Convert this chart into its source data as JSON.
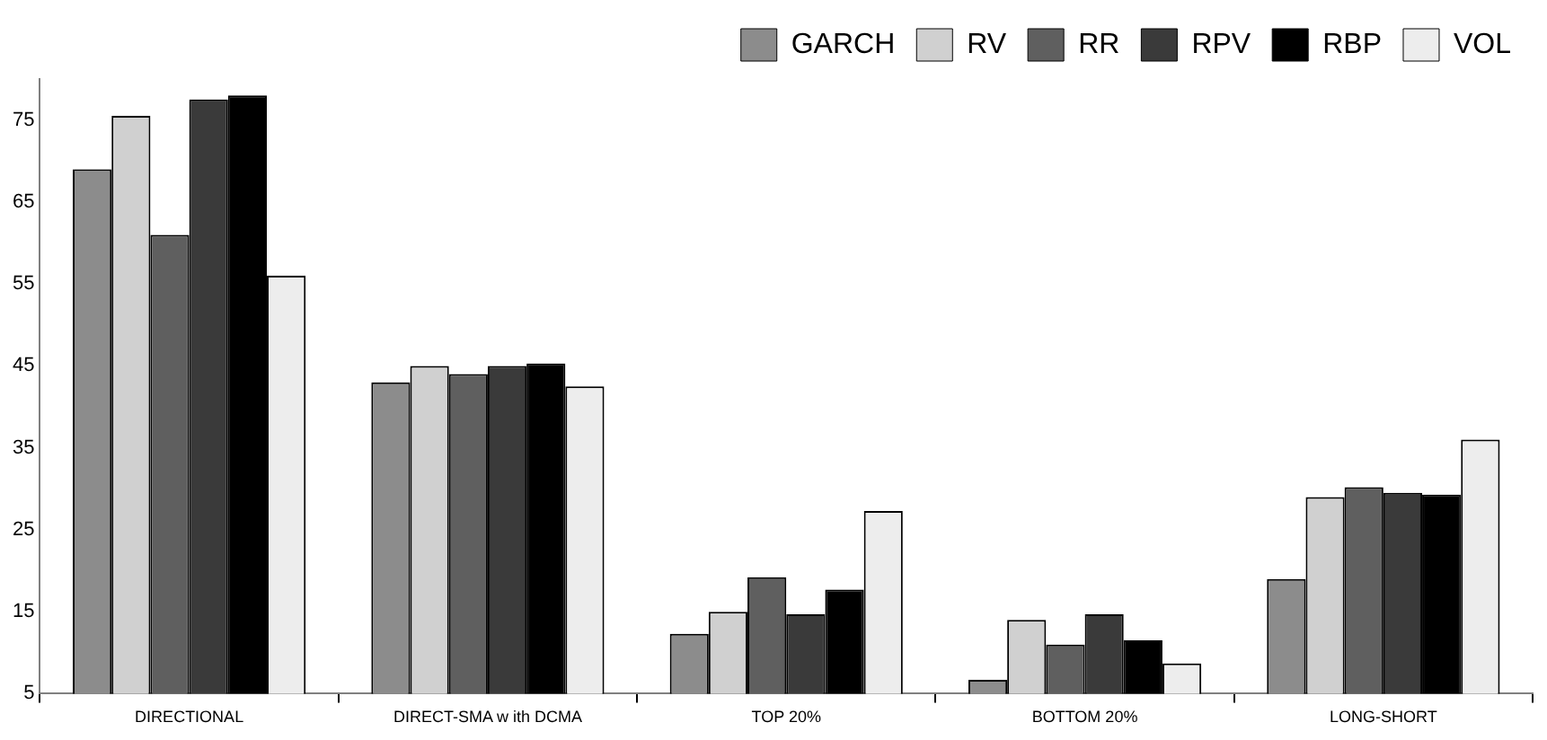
{
  "chart_data": {
    "type": "bar",
    "categories": [
      "DIRECTIONAL",
      "DIRECT-SMA w ith DCMA",
      "TOP 20%",
      "BOTTOM 20%",
      "LONG-SHORT"
    ],
    "series": [
      {
        "name": "GARCH",
        "color": "#8c8c8c",
        "values": [
          69,
          43,
          12.3,
          6.7,
          19
        ]
      },
      {
        "name": "RV",
        "color": "#d0d0d0",
        "values": [
          75.5,
          45,
          15,
          14,
          29
        ]
      },
      {
        "name": "RR",
        "color": "#5f5f5f",
        "values": [
          61,
          44,
          19.2,
          11,
          30.2
        ]
      },
      {
        "name": "RPV",
        "color": "#3a3a3a",
        "values": [
          77.5,
          45,
          14.7,
          14.7,
          29.5
        ]
      },
      {
        "name": "RBP",
        "color": "#000000",
        "values": [
          78,
          45.3,
          17.7,
          11.5,
          29.3
        ]
      },
      {
        "name": "VOL",
        "color": "#ededed",
        "values": [
          56,
          42.5,
          27.3,
          8.7,
          36
        ]
      }
    ],
    "ylim": [
      5,
      80
    ],
    "yticks": [
      5,
      15,
      25,
      35,
      45,
      55,
      65,
      75
    ],
    "grid": false,
    "legend": "top right"
  }
}
